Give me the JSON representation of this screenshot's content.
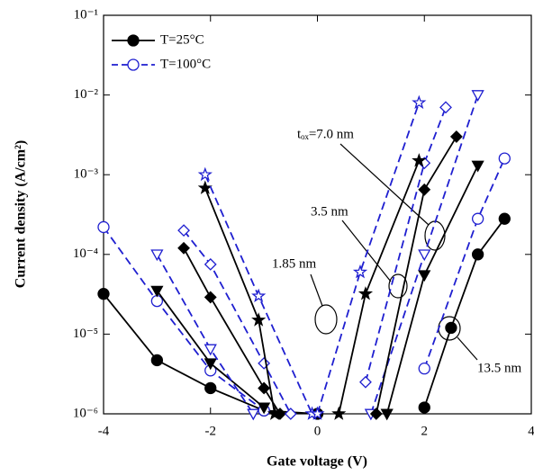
{
  "chart_data": {
    "type": "line",
    "x_label": "Gate voltage  (V)",
    "y_label": "Current density  (A/cm²)",
    "log_y": true,
    "xlim": [
      -4,
      4
    ],
    "xticks": [
      -4,
      -2,
      0,
      2,
      4
    ],
    "ylim": [
      1e-06,
      0.1
    ],
    "yticks": [
      {
        "value": 1e-06,
        "label": "10⁻⁶"
      },
      {
        "value": 1e-05,
        "label": "10⁻⁵"
      },
      {
        "value": 0.0001,
        "label": "10⁻⁴"
      },
      {
        "value": 0.001,
        "label": "10⁻³"
      },
      {
        "value": 0.01,
        "label": "10⁻²"
      },
      {
        "value": 0.1,
        "label": "10⁻¹"
      }
    ],
    "legend": [
      {
        "label": "T=25°C",
        "color": "#000000",
        "dashed": false,
        "marker": "circle",
        "filled": true
      },
      {
        "label": "T=100°C",
        "color": "#1f1fd0",
        "dashed": true,
        "marker": "circle",
        "filled": false
      }
    ],
    "legend_position": "upper left",
    "annotations": [
      "tₒₓ=7.0 nm",
      "3.5 nm",
      "1.85 nm",
      "13.5 nm"
    ],
    "series": [
      {
        "color": "#000000",
        "dashed": false,
        "marker": "circle",
        "filled": true,
        "x": [
          -4,
          -3,
          -2,
          -1,
          0,
          null,
          2,
          2.5,
          3,
          3.5
        ],
        "values": [
          3.2e-05,
          4.7e-06,
          2.1e-06,
          1.1e-06,
          1e-06,
          null,
          1.2e-06,
          1.2e-05,
          0.0001,
          0.00028
        ]
      },
      {
        "color": "#1f1fd0",
        "dashed": true,
        "marker": "circle",
        "filled": false,
        "x": [
          -4,
          -3,
          -2,
          -1,
          null,
          2,
          3,
          3.5
        ],
        "values": [
          0.00022,
          2.6e-05,
          3.5e-06,
          1.1e-06,
          null,
          3.7e-06,
          0.00028,
          0.0016
        ]
      },
      {
        "color": "#000000",
        "dashed": false,
        "marker": "triangle-down",
        "filled": true,
        "x": [
          -3,
          -2,
          -1,
          null,
          1.3,
          2,
          3
        ],
        "values": [
          3.5e-05,
          4.3e-06,
          1.2e-06,
          null,
          1e-06,
          5.5e-05,
          0.0013
        ]
      },
      {
        "color": "#1f1fd0",
        "dashed": true,
        "marker": "triangle-down",
        "filled": false,
        "x": [
          -3,
          -2,
          -1.2,
          null,
          1,
          2,
          3
        ],
        "values": [
          0.0001,
          6.5e-06,
          1e-06,
          null,
          1e-06,
          0.0001,
          0.01
        ]
      },
      {
        "color": "#000000",
        "dashed": false,
        "marker": "diamond",
        "filled": true,
        "x": [
          -2.5,
          -2,
          -1,
          -0.7,
          null,
          1.1,
          2,
          2.6
        ],
        "values": [
          0.00012,
          2.9e-05,
          2.1e-06,
          1e-06,
          null,
          1e-06,
          0.00065,
          0.003
        ]
      },
      {
        "color": "#1f1fd0",
        "dashed": true,
        "marker": "diamond",
        "filled": false,
        "x": [
          -2.5,
          -2,
          -1,
          -0.5,
          null,
          0.9,
          2,
          2.4
        ],
        "values": [
          0.0002,
          7.5e-05,
          4.3e-06,
          1e-06,
          null,
          2.5e-06,
          0.0014,
          0.007
        ]
      },
      {
        "color": "#000000",
        "dashed": false,
        "marker": "star",
        "filled": true,
        "x": [
          -2.1,
          -1.1,
          -0.8,
          null,
          0.4,
          0.9,
          1.9
        ],
        "values": [
          0.00068,
          1.5e-05,
          1e-06,
          null,
          1e-06,
          3.2e-05,
          0.0015
        ]
      },
      {
        "color": "#1f1fd0",
        "dashed": true,
        "marker": "star",
        "filled": false,
        "x": [
          -2.1,
          -1.1,
          -0.1,
          null,
          0,
          0.8,
          1.9
        ],
        "values": [
          0.001,
          3e-05,
          1e-06,
          null,
          1e-06,
          6e-05,
          0.008
        ]
      }
    ]
  }
}
